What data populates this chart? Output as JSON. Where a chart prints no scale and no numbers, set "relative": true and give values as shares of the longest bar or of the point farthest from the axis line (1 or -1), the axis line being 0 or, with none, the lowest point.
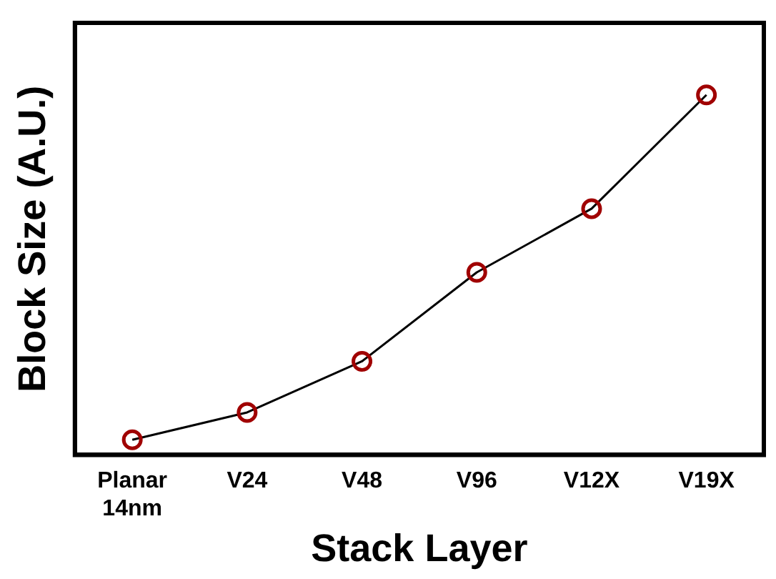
{
  "chart_data": {
    "type": "line",
    "xlabel": "Stack Layer",
    "ylabel": "Block Size (A.U.)",
    "categories": [
      "Planar\n14nm",
      "V24",
      "V48",
      "V96",
      "V12X",
      "V19X"
    ],
    "relative": true,
    "marker": "circle",
    "line_style": "solid",
    "grid": false,
    "legend": false,
    "series": [
      {
        "color": "#a00000",
        "values": [
          0.042,
          0.118,
          0.26,
          0.507,
          0.684,
          1
        ]
      }
    ]
  }
}
